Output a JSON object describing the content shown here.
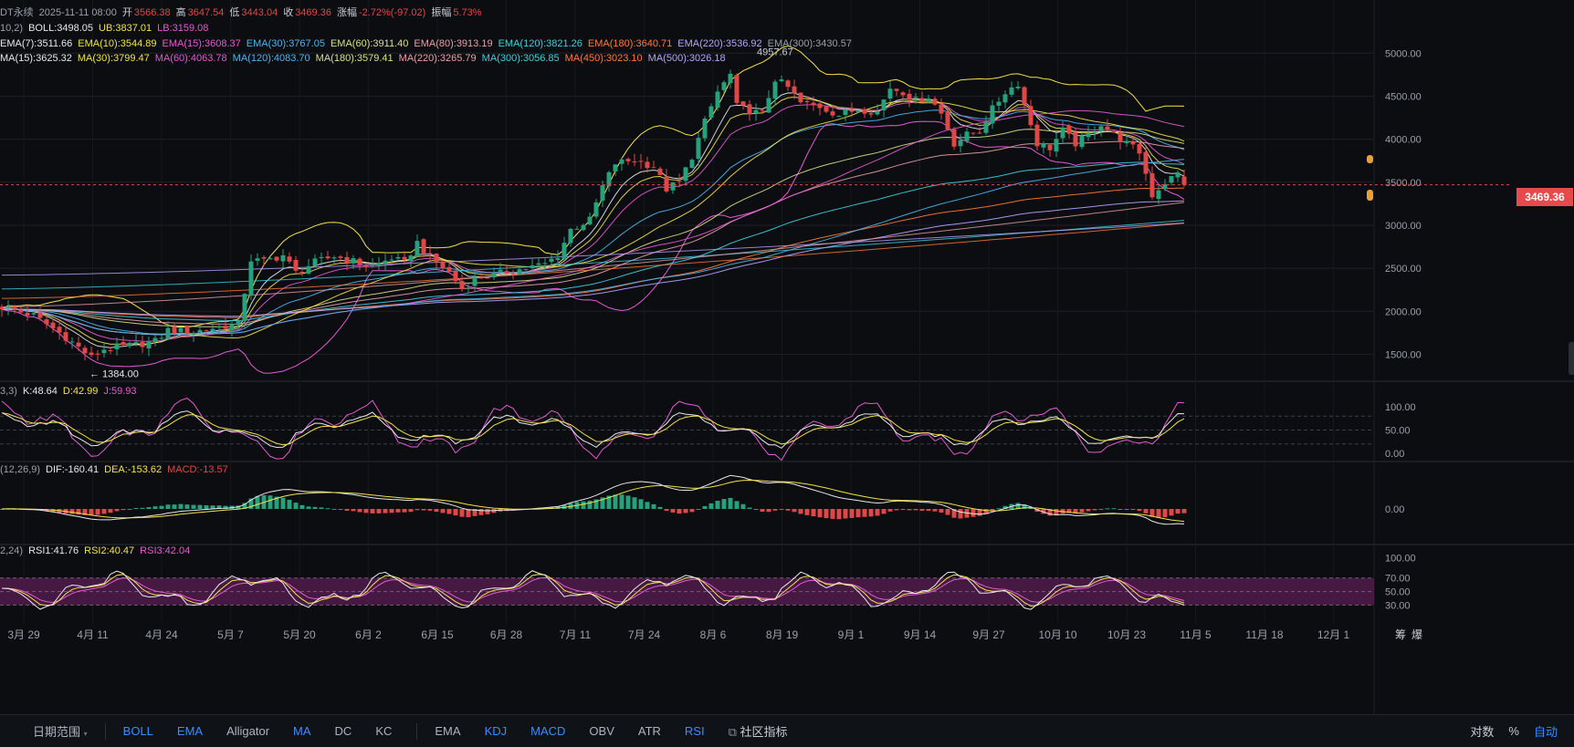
{
  "header": {
    "symbol_fragment": "DT永续",
    "datetime": "2025-11-11 08:00",
    "open_label": "开",
    "open": "3566.38",
    "high_label": "高",
    "high": "3647.54",
    "low_label": "低",
    "low": "3443.04",
    "close_label": "收",
    "close": "3469.36",
    "change_label": "涨幅",
    "change": "-2.72%(-97.02)",
    "amp_label": "振幅",
    "amp": "5.73%"
  },
  "boll_legend": {
    "param": "10,2)",
    "items": [
      {
        "text": "BOLL:3498.05",
        "color": "#e6e8ea"
      },
      {
        "text": "UB:3837.01",
        "color": "#f2e34b"
      },
      {
        "text": "LB:3159.08",
        "color": "#e35bd2"
      }
    ]
  },
  "ema_legend": [
    {
      "text": "EMA(7):3511.66",
      "color": "#e6e8ea"
    },
    {
      "text": "EMA(10):3544.89",
      "color": "#f2e34b"
    },
    {
      "text": "EMA(15):3608.37",
      "color": "#e35bd2"
    },
    {
      "text": "EMA(30):3767.05",
      "color": "#4db6f0"
    },
    {
      "text": "EMA(60):3911.40",
      "color": "#d9e08a"
    },
    {
      "text": "EMA(80):3913.19",
      "color": "#e8a0a8"
    },
    {
      "text": "EMA(120):3821.26",
      "color": "#3fd0e0"
    },
    {
      "text": "EMA(180):3640.71",
      "color": "#ff7a3c"
    },
    {
      "text": "EMA(220):3536.92",
      "color": "#b9a3ff"
    },
    {
      "text": "EMA(300):3430.57",
      "color": "#9aa0a8"
    }
  ],
  "ma_legend": [
    {
      "text": "MA(15):3625.32",
      "color": "#e6e8ea"
    },
    {
      "text": "MA(30):3799.47",
      "color": "#f2e34b"
    },
    {
      "text": "MA(60):4063.78",
      "color": "#e35bd2"
    },
    {
      "text": "MA(120):4083.70",
      "color": "#4db6f0"
    },
    {
      "text": "MA(180):3579.41",
      "color": "#d9e08a"
    },
    {
      "text": "MA(220):3265.79",
      "color": "#e8a0a8"
    },
    {
      "text": "MA(300):3056.85",
      "color": "#3fd0e0"
    },
    {
      "text": "MA(450):3023.10",
      "color": "#ff7a3c"
    },
    {
      "text": "MA(500):3026.18",
      "color": "#b9a3ff"
    }
  ],
  "kdj_legend": {
    "param": "3,3)",
    "k": "K:48.64",
    "d": "D:42.99",
    "j": "J:59.93"
  },
  "macd_legend": {
    "param": "(12,26,9)",
    "dif": "DIF:-160.41",
    "dea": "DEA:-153.62",
    "macd": "MACD:-13.57"
  },
  "rsi_legend": {
    "param": "2,24)",
    "rsi1": "RSI1:41.76",
    "rsi2": "RSI2:40.47",
    "rsi3": "RSI3:42.04"
  },
  "price_tag": "3469.36",
  "annotations": {
    "high_label": "4957.67",
    "low_label": "1384.00"
  },
  "toolbar": {
    "date_range": "日期范围",
    "items": [
      {
        "label": "BOLL",
        "active": true
      },
      {
        "label": "EMA",
        "active": true
      },
      {
        "label": "Alligator",
        "active": false
      },
      {
        "label": "MA",
        "active": true
      },
      {
        "label": "DC",
        "active": false
      },
      {
        "label": "KC",
        "active": false
      }
    ],
    "sub_items": [
      {
        "label": "EMA",
        "active": false
      },
      {
        "label": "KDJ",
        "active": true
      },
      {
        "label": "MACD",
        "active": true
      },
      {
        "label": "OBV",
        "active": false
      },
      {
        "label": "ATR",
        "active": false
      },
      {
        "label": "RSI",
        "active": true
      }
    ],
    "community": "社区指标",
    "right": {
      "log": "对数",
      "pct": "%",
      "auto": "自动"
    }
  },
  "corner_labels": {
    "a": "筹",
    "b": "爆"
  },
  "colors": {
    "up": "#26a17b",
    "down": "#e04848",
    "bg": "#0b0d10",
    "grid": "#1c2026",
    "accent": "#3b8cff"
  },
  "chart_data": {
    "type": "candlestick",
    "price_axis": {
      "ticks": [
        5000,
        4500,
        4000,
        3500,
        3000,
        2500,
        2000,
        1500
      ],
      "labels": [
        "5000.00",
        "4500.00",
        "4000.00",
        "3500.00",
        "3000.00",
        "2500.00",
        "2000.00",
        "1500.00"
      ],
      "range": [
        1250,
        5300
      ]
    },
    "date_axis": [
      "3月 29",
      "4月 11",
      "4月 24",
      "5月 7",
      "5月 20",
      "6月 2",
      "6月 15",
      "6月 28",
      "7月 11",
      "7月 24",
      "8月 6",
      "8月 19",
      "9月 1",
      "9月 14",
      "9月 27",
      "10月 10",
      "10月 23",
      "11月 5",
      "11月 18",
      "12月 1"
    ],
    "close_anchors": [
      [
        0,
        2050
      ],
      [
        5,
        1950
      ],
      [
        10,
        1700
      ],
      [
        14,
        1460
      ],
      [
        16,
        1560
      ],
      [
        20,
        1600
      ],
      [
        24,
        1650
      ],
      [
        26,
        1780
      ],
      [
        30,
        1760
      ],
      [
        34,
        1820
      ],
      [
        37,
        1850
      ],
      [
        39,
        2600
      ],
      [
        41,
        2580
      ],
      [
        44,
        2650
      ],
      [
        46,
        2450
      ],
      [
        49,
        2570
      ],
      [
        52,
        2640
      ],
      [
        55,
        2580
      ],
      [
        58,
        2520
      ],
      [
        61,
        2620
      ],
      [
        63,
        2560
      ],
      [
        65,
        2800
      ],
      [
        67,
        2620
      ],
      [
        70,
        2450
      ],
      [
        72,
        2260
      ],
      [
        74,
        2380
      ],
      [
        78,
        2440
      ],
      [
        82,
        2500
      ],
      [
        85,
        2550
      ],
      [
        87,
        2650
      ],
      [
        89,
        2950
      ],
      [
        92,
        3060
      ],
      [
        94,
        3450
      ],
      [
        96,
        3720
      ],
      [
        99,
        3760
      ],
      [
        102,
        3680
      ],
      [
        104,
        3420
      ],
      [
        106,
        3500
      ],
      [
        108,
        3800
      ],
      [
        110,
        4200
      ],
      [
        112,
        4550
      ],
      [
        114,
        4750
      ],
      [
        115,
        4380
      ],
      [
        117,
        4330
      ],
      [
        119,
        4290
      ],
      [
        121,
        4700
      ],
      [
        123,
        4600
      ],
      [
        125,
        4420
      ],
      [
        128,
        4380
      ],
      [
        131,
        4280
      ],
      [
        134,
        4350
      ],
      [
        137,
        4320
      ],
      [
        139,
        4600
      ],
      [
        141,
        4550
      ],
      [
        143,
        4450
      ],
      [
        145,
        4500
      ],
      [
        147,
        4300
      ],
      [
        149,
        3950
      ],
      [
        151,
        4050
      ],
      [
        153,
        4100
      ],
      [
        155,
        4350
      ],
      [
        157,
        4550
      ],
      [
        159,
        4650
      ],
      [
        160,
        4400
      ],
      [
        162,
        3950
      ],
      [
        164,
        3900
      ],
      [
        166,
        4100
      ],
      [
        168,
        3950
      ],
      [
        170,
        4050
      ],
      [
        172,
        4180
      ],
      [
        174,
        4050
      ],
      [
        176,
        3950
      ],
      [
        178,
        3850
      ],
      [
        180,
        3350
      ],
      [
        182,
        3500
      ],
      [
        184,
        3600
      ],
      [
        185,
        3469
      ]
    ],
    "overlays_end": {
      "BOLL": 3498.05,
      "UB": 3837.01,
      "LB": 3159.08,
      "EMA7": 3511.66,
      "EMA10": 3544.89,
      "EMA15": 3608.37,
      "EMA30": 3767.05,
      "EMA60": 3911.4,
      "EMA80": 3913.19,
      "EMA120": 3821.26,
      "EMA180": 3640.71,
      "EMA220": 3536.92,
      "EMA300": 3430.57,
      "MA15": 3625.32,
      "MA30": 3799.47,
      "MA60": 4063.78,
      "MA120": 4083.7,
      "MA180": 3579.41,
      "MA220": 3265.79,
      "MA300": 3056.85,
      "MA450": 3023.1,
      "MA500": 3026.18
    },
    "kdj_axis": {
      "labels": [
        "100.00",
        "50.00",
        "0.00"
      ],
      "values": [
        100,
        50,
        0
      ],
      "dashed": [
        80,
        50,
        20
      ],
      "range": [
        -10,
        112
      ]
    },
    "macd_axis": {
      "labels": [
        "0.00"
      ],
      "values": [
        0
      ],
      "range": [
        -420,
        420
      ]
    },
    "rsi_axis": {
      "labels": [
        "100.00",
        "70.00",
        "50.00",
        "30.00"
      ],
      "values": [
        100,
        70,
        50,
        30
      ],
      "band": [
        30,
        70
      ],
      "range": [
        5,
        110
      ]
    }
  }
}
